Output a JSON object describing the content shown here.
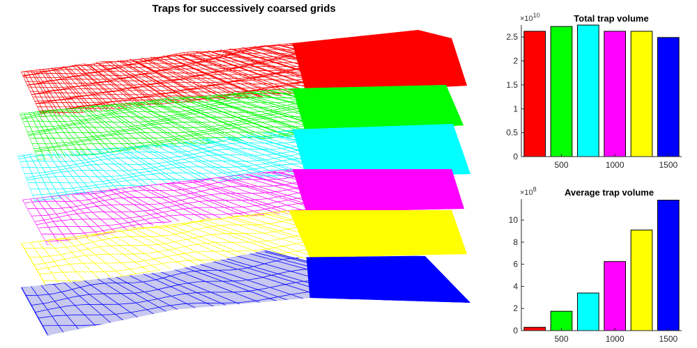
{
  "main_title": "Traps for successively coarsed grids",
  "layer_colors": [
    "#ff0000",
    "#00ff00",
    "#00ffff",
    "#ff00ff",
    "#ffff00",
    "#0000ff"
  ],
  "chart_data": [
    {
      "type": "bar",
      "title": "Total trap volume",
      "exponent_label": "×10",
      "exponent_power": "10",
      "categories": [
        "",
        "500",
        "",
        "1000",
        "",
        "1500"
      ],
      "values": [
        2.62,
        2.72,
        2.75,
        2.62,
        2.62,
        2.49
      ],
      "colors": [
        "#ff0000",
        "#00ff00",
        "#00ffff",
        "#ff00ff",
        "#ffff00",
        "#0000ff"
      ],
      "ylim": [
        0,
        2.75
      ],
      "yticks": [
        0,
        0.5,
        1,
        1.5,
        2,
        2.5
      ],
      "ytick_labels": [
        "0",
        "0.5",
        "1",
        "1.5",
        "2",
        "2.5"
      ],
      "grid": false
    },
    {
      "type": "bar",
      "title": "Average trap volume",
      "exponent_label": "×10",
      "exponent_power": "8",
      "categories": [
        "",
        "500",
        "",
        "1000",
        "",
        "1500"
      ],
      "values": [
        0.3,
        1.75,
        3.4,
        6.25,
        9.1,
        11.8
      ],
      "colors": [
        "#ff0000",
        "#00ff00",
        "#00ffff",
        "#ff00ff",
        "#ffff00",
        "#0000ff"
      ],
      "ylim": [
        0,
        11.9
      ],
      "yticks": [
        0,
        2,
        4,
        6,
        8,
        10
      ],
      "ytick_labels": [
        "0",
        "2",
        "4",
        "6",
        "8",
        "10"
      ],
      "grid": false
    }
  ]
}
